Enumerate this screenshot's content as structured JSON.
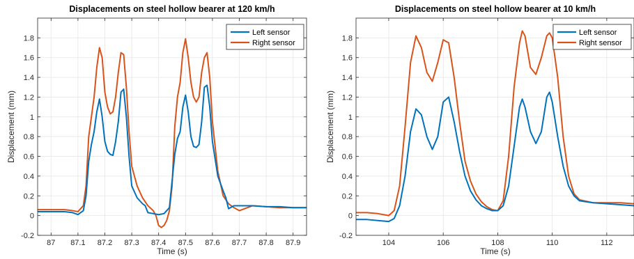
{
  "colors": {
    "left_sensor": "#0072BD",
    "right_sensor": "#D95319",
    "grid": "#e6e6e6",
    "axis": "#262626"
  },
  "chart_data": [
    {
      "type": "line",
      "title": "Displacements on steel hollow bearer at 120 km/h",
      "xlabel": "Time (s)",
      "ylabel": "Displacement (mm)",
      "xlim": [
        86.95,
        87.95
      ],
      "ylim": [
        -0.2,
        2.0
      ],
      "xticks": [
        87,
        87.1,
        87.2,
        87.3,
        87.4,
        87.5,
        87.6,
        87.7,
        87.8,
        87.9
      ],
      "yticks": [
        -0.2,
        0,
        0.2,
        0.4,
        0.6,
        0.8,
        1,
        1.2,
        1.4,
        1.6,
        1.8
      ],
      "grid": true,
      "legend_position": "top-right",
      "series": [
        {
          "name": "Left sensor",
          "x": [
            86.95,
            87.0,
            87.05,
            87.08,
            87.1,
            87.12,
            87.13,
            87.14,
            87.15,
            87.16,
            87.17,
            87.18,
            87.19,
            87.2,
            87.21,
            87.22,
            87.23,
            87.24,
            87.25,
            87.26,
            87.27,
            87.28,
            87.29,
            87.3,
            87.32,
            87.34,
            87.35,
            87.36,
            87.38,
            87.4,
            87.42,
            87.44,
            87.45,
            87.46,
            87.47,
            87.48,
            87.49,
            87.5,
            87.51,
            87.52,
            87.53,
            87.54,
            87.55,
            87.56,
            87.57,
            87.58,
            87.59,
            87.6,
            87.62,
            87.64,
            87.65,
            87.66,
            87.68,
            87.7,
            87.75,
            87.8,
            87.85,
            87.9,
            87.95
          ],
          "y": [
            0.04,
            0.04,
            0.04,
            0.03,
            0.01,
            0.05,
            0.2,
            0.55,
            0.72,
            0.85,
            1.05,
            1.18,
            1.0,
            0.75,
            0.65,
            0.62,
            0.61,
            0.75,
            0.95,
            1.25,
            1.28,
            1.0,
            0.6,
            0.3,
            0.18,
            0.12,
            0.1,
            0.03,
            0.02,
            0.01,
            0.02,
            0.08,
            0.35,
            0.62,
            0.78,
            0.85,
            1.1,
            1.22,
            1.05,
            0.8,
            0.7,
            0.69,
            0.72,
            0.95,
            1.3,
            1.32,
            1.1,
            0.75,
            0.4,
            0.25,
            0.18,
            0.07,
            0.1,
            0.1,
            0.1,
            0.09,
            0.09,
            0.08,
            0.08
          ]
        },
        {
          "name": "Right sensor",
          "x": [
            86.95,
            87.0,
            87.05,
            87.08,
            87.1,
            87.12,
            87.13,
            87.14,
            87.15,
            87.16,
            87.17,
            87.18,
            87.19,
            87.2,
            87.21,
            87.22,
            87.23,
            87.24,
            87.25,
            87.26,
            87.27,
            87.28,
            87.29,
            87.3,
            87.32,
            87.34,
            87.36,
            87.38,
            87.39,
            87.4,
            87.41,
            87.42,
            87.43,
            87.44,
            87.45,
            87.46,
            87.47,
            87.48,
            87.49,
            87.5,
            87.51,
            87.52,
            87.53,
            87.54,
            87.55,
            87.56,
            87.57,
            87.58,
            87.59,
            87.6,
            87.62,
            87.64,
            87.66,
            87.68,
            87.7,
            87.72,
            87.75,
            87.8,
            87.85,
            87.9,
            87.95
          ],
          "y": [
            0.06,
            0.06,
            0.06,
            0.05,
            0.04,
            0.1,
            0.3,
            0.8,
            1.0,
            1.2,
            1.5,
            1.7,
            1.6,
            1.25,
            1.1,
            1.03,
            1.05,
            1.2,
            1.45,
            1.65,
            1.63,
            1.3,
            0.85,
            0.5,
            0.3,
            0.18,
            0.1,
            0.05,
            0.0,
            -0.1,
            -0.12,
            -0.1,
            -0.05,
            0.05,
            0.3,
            0.9,
            1.2,
            1.35,
            1.65,
            1.79,
            1.6,
            1.35,
            1.2,
            1.15,
            1.2,
            1.45,
            1.6,
            1.65,
            1.4,
            0.95,
            0.45,
            0.2,
            0.12,
            0.08,
            0.05,
            0.07,
            0.1,
            0.09,
            0.08,
            0.08,
            0.08
          ]
        }
      ]
    },
    {
      "type": "line",
      "title": "Displacements on steel hollow bearer at 10 km/h",
      "xlabel": "Time (s)",
      "ylabel": "Displacement (mm)",
      "xlim": [
        102.8,
        113.0
      ],
      "ylim": [
        -0.2,
        2.0
      ],
      "xticks": [
        104,
        106,
        108,
        110,
        112
      ],
      "yticks": [
        -0.2,
        0,
        0.2,
        0.4,
        0.6,
        0.8,
        1,
        1.2,
        1.4,
        1.6,
        1.8
      ],
      "grid": true,
      "legend_position": "top-right",
      "series": [
        {
          "name": "Left sensor",
          "x": [
            102.8,
            103.2,
            103.6,
            104.0,
            104.2,
            104.4,
            104.6,
            104.8,
            105.0,
            105.2,
            105.4,
            105.6,
            105.8,
            106.0,
            106.2,
            106.4,
            106.6,
            106.8,
            107.0,
            107.2,
            107.4,
            107.6,
            107.8,
            108.0,
            108.2,
            108.4,
            108.6,
            108.8,
            108.9,
            109.0,
            109.2,
            109.4,
            109.6,
            109.8,
            109.9,
            110.0,
            110.2,
            110.4,
            110.6,
            110.8,
            111.0,
            111.5,
            112.0,
            112.5,
            113.0
          ],
          "y": [
            -0.04,
            -0.04,
            -0.05,
            -0.06,
            -0.03,
            0.1,
            0.4,
            0.85,
            1.08,
            1.02,
            0.8,
            0.67,
            0.8,
            1.15,
            1.2,
            0.95,
            0.65,
            0.4,
            0.25,
            0.16,
            0.1,
            0.07,
            0.05,
            0.05,
            0.1,
            0.3,
            0.7,
            1.1,
            1.18,
            1.1,
            0.85,
            0.73,
            0.85,
            1.2,
            1.25,
            1.15,
            0.8,
            0.5,
            0.3,
            0.2,
            0.15,
            0.13,
            0.12,
            0.11,
            0.1
          ]
        },
        {
          "name": "Right sensor",
          "x": [
            102.8,
            103.2,
            103.6,
            104.0,
            104.2,
            104.4,
            104.6,
            104.8,
            105.0,
            105.2,
            105.4,
            105.6,
            105.8,
            106.0,
            106.2,
            106.4,
            106.6,
            106.8,
            107.0,
            107.2,
            107.4,
            107.6,
            107.8,
            108.0,
            108.2,
            108.4,
            108.6,
            108.8,
            108.9,
            109.0,
            109.2,
            109.4,
            109.6,
            109.8,
            109.9,
            110.0,
            110.2,
            110.4,
            110.6,
            110.8,
            111.0,
            111.5,
            112.0,
            112.5,
            113.0
          ],
          "y": [
            0.03,
            0.03,
            0.02,
            0.0,
            0.05,
            0.3,
            0.9,
            1.55,
            1.82,
            1.7,
            1.45,
            1.36,
            1.55,
            1.78,
            1.75,
            1.4,
            0.95,
            0.55,
            0.35,
            0.22,
            0.14,
            0.09,
            0.06,
            0.05,
            0.15,
            0.6,
            1.3,
            1.75,
            1.87,
            1.82,
            1.5,
            1.43,
            1.6,
            1.82,
            1.85,
            1.8,
            1.4,
            0.8,
            0.4,
            0.22,
            0.16,
            0.13,
            0.13,
            0.13,
            0.12
          ]
        }
      ]
    }
  ]
}
